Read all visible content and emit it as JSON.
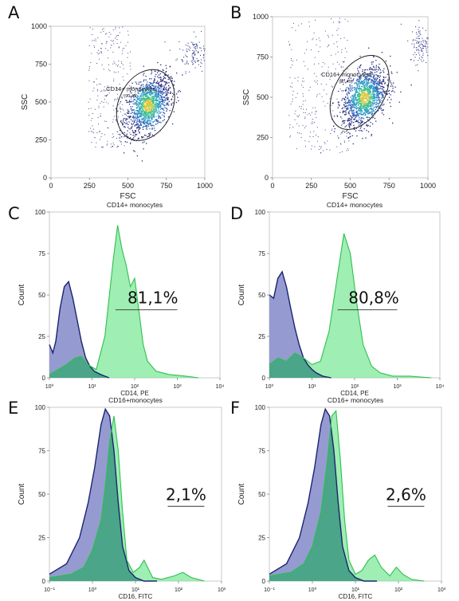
{
  "panel_letters": [
    "A",
    "B",
    "C",
    "D",
    "E",
    "F"
  ],
  "colors": {
    "negative_fill": "#8a90cc",
    "negative_line": "#1c2370",
    "positive_fill": "#7fe89a",
    "positive_line": "#2ec04f",
    "overlap_fill": "#3f9c84",
    "gate": "#222222",
    "marker": "#333333"
  },
  "chart_data": [
    {
      "panel": "A",
      "type": "scatter",
      "xlabel": "FSC",
      "ylabel": "SSC",
      "xlim": [
        0,
        1000
      ],
      "ylim": [
        0,
        1000
      ],
      "xticks": [
        "0",
        "250",
        "500",
        "750",
        "1000"
      ],
      "yticks": [
        "0",
        "250",
        "500",
        "750",
        "1000"
      ],
      "gate": {
        "label": "CD14+ monocytes",
        "value": "(90,45)",
        "cx": 615,
        "cy": 480,
        "rx": 175,
        "ry": 245,
        "angle": 25
      },
      "population": {
        "cx": 630,
        "cy": 480,
        "sx": 70,
        "sy": 95,
        "rho": 0.45
      },
      "debris": {
        "x": [
          240,
          520
        ],
        "y": [
          200,
          1000
        ]
      },
      "corner_cluster": {
        "cx": 930,
        "cy": 830,
        "sx": 55,
        "sy": 60
      }
    },
    {
      "panel": "B",
      "type": "scatter",
      "xlabel": "FSC",
      "ylabel": "SSC",
      "xlim": [
        0,
        1000
      ],
      "ylim": [
        0,
        1000
      ],
      "xticks": [
        "0",
        "250",
        "500",
        "750",
        "1000"
      ],
      "yticks": [
        "0",
        "250",
        "500",
        "750",
        "1000"
      ],
      "gate": {
        "label": "CD16+ monocytes",
        "value": "(87,45)",
        "cx": 560,
        "cy": 530,
        "rx": 160,
        "ry": 250,
        "angle": 30
      },
      "population": {
        "cx": 590,
        "cy": 500,
        "sx": 70,
        "sy": 90,
        "rho": 0.4
      },
      "debris": {
        "x": [
          100,
          500
        ],
        "y": [
          150,
          1000
        ]
      },
      "corner_cluster": {
        "cx": 960,
        "cy": 830,
        "sx": 40,
        "sy": 60
      }
    },
    {
      "panel": "C",
      "type": "area",
      "title": "CD14+ monocytes",
      "xlabel": "CD14, PE",
      "ylabel": "Count",
      "xlim": [
        0,
        4
      ],
      "ylim": [
        0,
        100
      ],
      "xticks": [
        "10⁰",
        "10¹",
        "10²",
        "10³",
        "10⁴"
      ],
      "yticks": [
        "0",
        "25",
        "50",
        "75",
        "100"
      ],
      "series": [
        {
          "role": "isotype",
          "x": [
            0,
            0.08,
            0.15,
            0.25,
            0.35,
            0.45,
            0.55,
            0.65,
            0.75,
            0.85,
            0.95,
            1.05,
            1.2,
            1.4
          ],
          "y": [
            20,
            15,
            22,
            42,
            55,
            58,
            48,
            35,
            22,
            12,
            7,
            4,
            2,
            0
          ]
        },
        {
          "role": "stained",
          "x": [
            0,
            0.2,
            0.4,
            0.6,
            0.75,
            0.9,
            1.1,
            1.3,
            1.5,
            1.6,
            1.7,
            1.8,
            1.9,
            2.0,
            2.1,
            2.2,
            2.3,
            2.5,
            2.8,
            3.2,
            3.5
          ],
          "y": [
            2,
            5,
            8,
            12,
            13,
            8,
            5,
            25,
            72,
            92,
            78,
            68,
            55,
            60,
            40,
            20,
            10,
            4,
            2,
            1,
            0
          ]
        }
      ],
      "marker": {
        "x_start": 1.55,
        "x_end": 3.0,
        "y": 41,
        "label": "81,1%"
      }
    },
    {
      "panel": "D",
      "type": "area",
      "title": "CD14+ monocytes",
      "xlabel": "CD14, PE",
      "ylabel": "Count",
      "xlim": [
        0,
        4
      ],
      "ylim": [
        0,
        100
      ],
      "xticks": [
        "10⁰",
        "10¹",
        "10²",
        "10³",
        "10⁴"
      ],
      "yticks": [
        "0",
        "25",
        "50",
        "75",
        "100"
      ],
      "series": [
        {
          "role": "isotype",
          "x": [
            0,
            0.1,
            0.2,
            0.3,
            0.4,
            0.5,
            0.6,
            0.7,
            0.8,
            0.9,
            1.0,
            1.1,
            1.25,
            1.45
          ],
          "y": [
            50,
            48,
            60,
            64,
            55,
            42,
            30,
            20,
            12,
            8,
            5,
            3,
            1,
            0
          ]
        },
        {
          "role": "stained",
          "x": [
            0,
            0.2,
            0.4,
            0.6,
            0.8,
            1.0,
            1.2,
            1.4,
            1.6,
            1.75,
            1.9,
            2.05,
            2.2,
            2.4,
            2.6,
            2.9,
            3.3,
            3.8
          ],
          "y": [
            8,
            12,
            10,
            15,
            12,
            8,
            10,
            28,
            62,
            87,
            75,
            45,
            20,
            7,
            3,
            1,
            1,
            0
          ]
        }
      ],
      "marker": {
        "x_start": 1.6,
        "x_end": 3.0,
        "y": 41,
        "label": "80,8%"
      }
    },
    {
      "panel": "E",
      "type": "area",
      "title": "CD16+monocytes",
      "xlabel": "CD16, FITC",
      "ylabel": "Count",
      "xlim": [
        -1,
        3
      ],
      "ylim": [
        0,
        100
      ],
      "xticks": [
        "10⁻¹",
        "10⁰",
        "10¹",
        "10²",
        "10³"
      ],
      "yticks": [
        "0",
        "25",
        "50",
        "75",
        "100"
      ],
      "series": [
        {
          "role": "isotype",
          "x": [
            -1,
            -0.6,
            -0.3,
            -0.1,
            0.05,
            0.2,
            0.3,
            0.4,
            0.5,
            0.6,
            0.7,
            0.85,
            1.0,
            1.2,
            1.5
          ],
          "y": [
            4,
            10,
            25,
            45,
            65,
            90,
            99,
            95,
            75,
            45,
            20,
            6,
            2,
            0,
            0
          ]
        },
        {
          "role": "stained",
          "x": [
            -1,
            -0.5,
            -0.2,
            0.0,
            0.2,
            0.3,
            0.4,
            0.5,
            0.6,
            0.7,
            0.8,
            0.95,
            1.1,
            1.2,
            1.3,
            1.4,
            1.6,
            1.9,
            2.1,
            2.3,
            2.6
          ],
          "y": [
            2,
            4,
            8,
            18,
            35,
            55,
            80,
            95,
            75,
            40,
            12,
            5,
            8,
            12,
            7,
            2,
            1,
            3,
            5,
            2,
            0
          ]
        }
      ],
      "marker": {
        "x_start": 1.75,
        "x_end": 2.6,
        "y": 43,
        "label": "2,1%"
      }
    },
    {
      "panel": "F",
      "type": "area",
      "title": "CD16+ monocytes",
      "xlabel": "CD16, FITC",
      "ylabel": "Count",
      "xlim": [
        -1,
        3
      ],
      "ylim": [
        0,
        100
      ],
      "xticks": [
        "10⁻¹",
        "10⁰",
        "10¹",
        "10²",
        "10³"
      ],
      "yticks": [
        "0",
        "25",
        "50",
        "75",
        "100"
      ],
      "series": [
        {
          "role": "isotype",
          "x": [
            -1,
            -0.6,
            -0.3,
            -0.1,
            0.05,
            0.2,
            0.3,
            0.4,
            0.5,
            0.6,
            0.7,
            0.85,
            1.0,
            1.2,
            1.5
          ],
          "y": [
            4,
            10,
            25,
            45,
            65,
            90,
            99,
            95,
            75,
            45,
            20,
            6,
            2,
            0,
            0
          ]
        },
        {
          "role": "stained",
          "x": [
            -1,
            -0.5,
            -0.2,
            0.0,
            0.2,
            0.35,
            0.45,
            0.55,
            0.65,
            0.75,
            0.85,
            1.0,
            1.15,
            1.3,
            1.45,
            1.6,
            1.8,
            1.95,
            2.1,
            2.3,
            2.6
          ],
          "y": [
            3,
            5,
            10,
            20,
            40,
            70,
            95,
            98,
            70,
            35,
            12,
            4,
            6,
            12,
            15,
            8,
            3,
            8,
            4,
            1,
            0
          ]
        }
      ],
      "marker": {
        "x_start": 1.75,
        "x_end": 2.6,
        "y": 43,
        "label": "2,6%"
      }
    }
  ]
}
